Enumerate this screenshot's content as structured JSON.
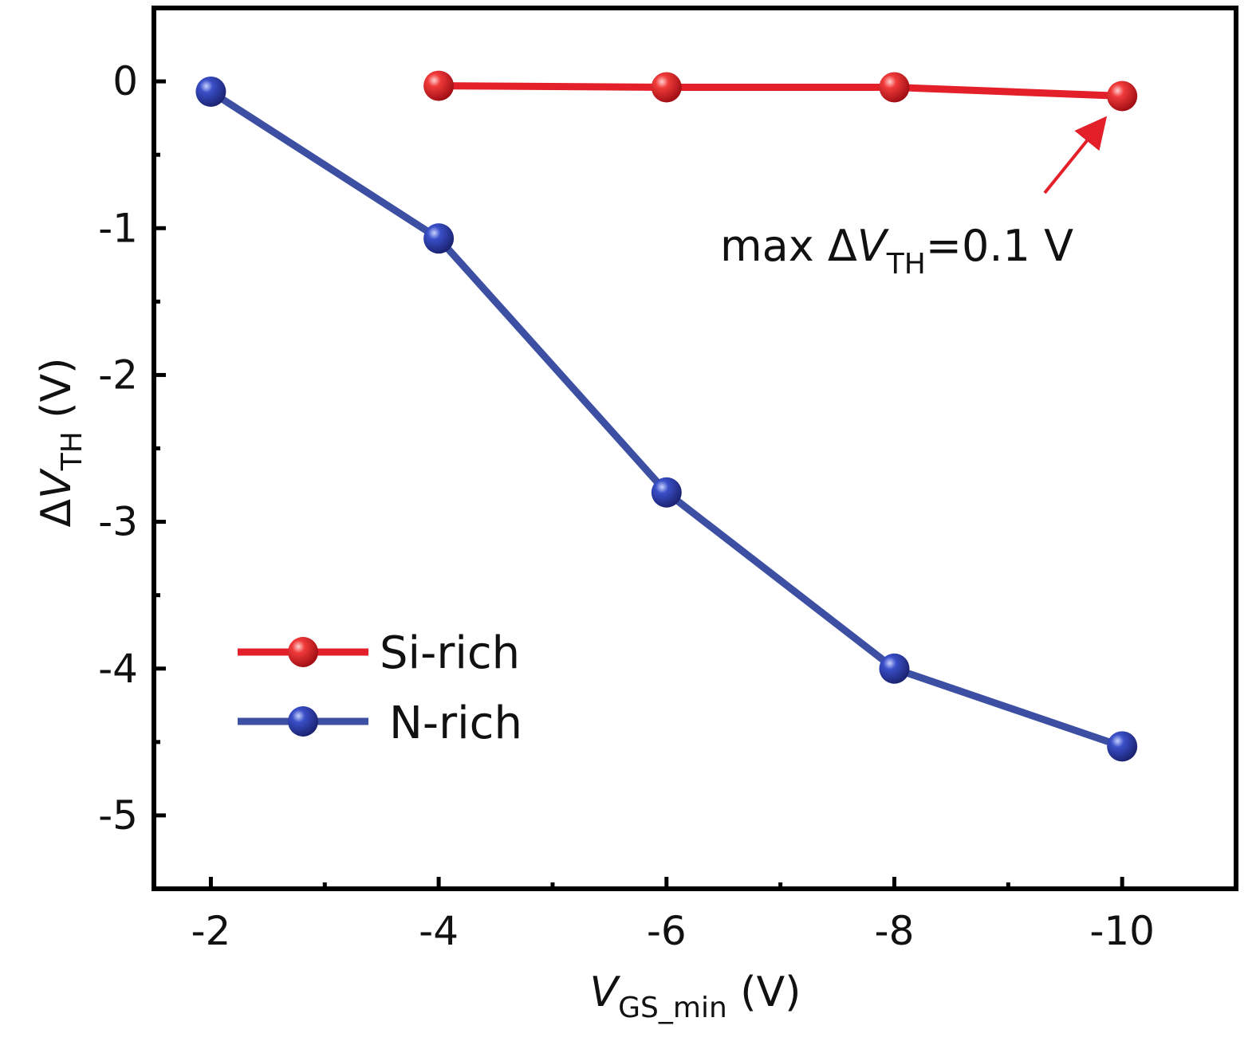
{
  "chart_data": {
    "type": "line",
    "xlabel": {
      "main": "V",
      "sub": "GS_min",
      "unit": " (V)"
    },
    "ylabel": {
      "prefix": "Δ",
      "main": "V",
      "sub": "TH",
      "unit": " (V)"
    },
    "xlim": [
      -1.5,
      -11
    ],
    "ylim": [
      -5.5,
      0.5
    ],
    "x_ticks": [
      -2,
      -4,
      -6,
      -8,
      -10
    ],
    "y_ticks": [
      0,
      -1,
      -2,
      -3,
      -4,
      -5
    ],
    "x_tick_labels": [
      "-2",
      "-4",
      "-6",
      "-8",
      "-10"
    ],
    "y_tick_labels": [
      "0",
      "-1",
      "-2",
      "-3",
      "-4",
      "-5"
    ],
    "grid": false,
    "legend_position": "bottom-left",
    "series": [
      {
        "name": "Si-rich",
        "color": "#e3202a",
        "x": [
          -4,
          -6,
          -8,
          -10
        ],
        "y": [
          -0.03,
          -0.04,
          -0.04,
          -0.1
        ]
      },
      {
        "name": "N-rich",
        "color": "#3c4fa3",
        "x": [
          -2,
          -4,
          -6,
          -8,
          -10
        ],
        "y": [
          -0.07,
          -1.07,
          -2.8,
          -4.0,
          -4.53
        ]
      }
    ],
    "annotation": {
      "prefix": "max Δ",
      "main": "V",
      "sub": "TH",
      "suffix": "=0.1 V",
      "target_x": -10,
      "target_y": -0.1
    }
  }
}
